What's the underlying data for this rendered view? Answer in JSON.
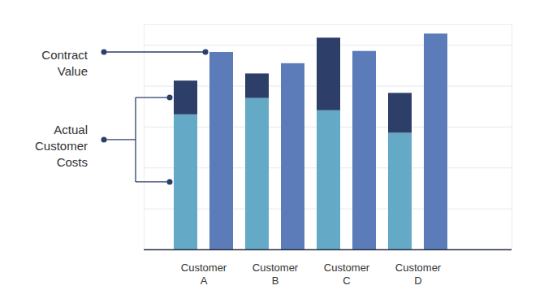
{
  "chart_data": {
    "type": "bar",
    "categories": [
      "Customer\nA",
      "Customer\nB",
      "Customer\nC",
      "Customer\nD"
    ],
    "series": [
      {
        "name": "Actual Customer Costs",
        "segments": [
          {
            "color": "#64a9c6",
            "values": [
              66,
              74,
              68,
              57
            ]
          },
          {
            "color": "#2d3e69",
            "values": [
              16.5,
              12,
              35.5,
              19.5
            ]
          }
        ]
      },
      {
        "name": "Contract Value",
        "color": "#5c7cb9",
        "values": [
          96.5,
          91,
          97,
          105.5
        ]
      }
    ],
    "ylim": [
      0,
      110
    ],
    "yticks": [
      0,
      20,
      40,
      60,
      80,
      100
    ],
    "grid": true,
    "stacked": true,
    "tick_labels": "x"
  }
}
